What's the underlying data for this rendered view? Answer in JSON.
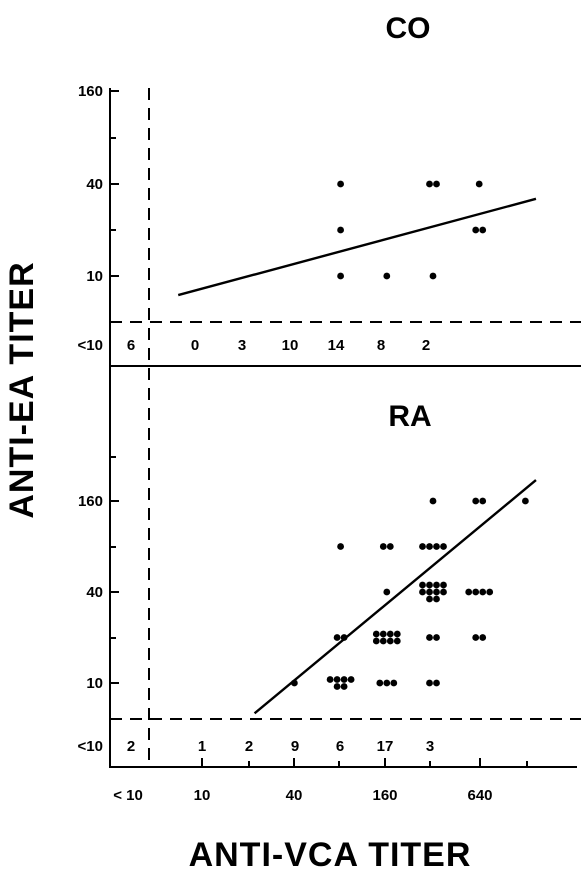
{
  "chart_data": [
    {
      "type": "scatter",
      "title": "CO",
      "xlabel": "ANTI-VCA TITER",
      "ylabel": "ANTI-EA TITER",
      "y_ticks": [
        "160",
        "40",
        "10",
        "<10"
      ],
      "points": [
        {
          "x": 80,
          "y": 40
        },
        {
          "x": 80,
          "y": 20
        },
        {
          "x": 80,
          "y": 10
        },
        {
          "x": 160,
          "y": 10
        },
        {
          "x": 320,
          "y": 40
        },
        {
          "x": 320,
          "y": 40
        },
        {
          "x": 320,
          "y": 10
        },
        {
          "x": 640,
          "y": 40
        },
        {
          "x": 640,
          "y": 20
        },
        {
          "x": 640,
          "y": 20
        }
      ],
      "regression": [
        {
          "x": 7,
          "y": 7.5
        },
        {
          "x": 1500,
          "y": 32
        }
      ],
      "below_threshold_counts": {
        "label": "<10",
        "x_values": [
          "<10",
          "5",
          "10",
          "20",
          "40",
          "80",
          "160",
          "320"
        ],
        "counts": [
          "6",
          "0",
          "3",
          "10",
          "14",
          "8",
          "2",
          ""
        ]
      }
    },
    {
      "type": "scatter",
      "title": "RA",
      "xlabel": "ANTI-VCA TITER",
      "ylabel": "ANTI-EA TITER",
      "x_ticks": [
        "< 10",
        "10",
        "40",
        "160",
        "640"
      ],
      "y_ticks": [
        "160",
        "40",
        "10",
        "<10"
      ],
      "points": [
        {
          "x": 40,
          "y": 10
        },
        {
          "x": 80,
          "y": 10
        },
        {
          "x": 80,
          "y": 10
        },
        {
          "x": 80,
          "y": 10
        },
        {
          "x": 80,
          "y": 10
        },
        {
          "x": 80,
          "y": 10
        },
        {
          "x": 80,
          "y": 10
        },
        {
          "x": 80,
          "y": 20
        },
        {
          "x": 80,
          "y": 20
        },
        {
          "x": 80,
          "y": 80
        },
        {
          "x": 160,
          "y": 10
        },
        {
          "x": 160,
          "y": 10
        },
        {
          "x": 160,
          "y": 10
        },
        {
          "x": 160,
          "y": 20
        },
        {
          "x": 160,
          "y": 20
        },
        {
          "x": 160,
          "y": 20
        },
        {
          "x": 160,
          "y": 20
        },
        {
          "x": 160,
          "y": 20
        },
        {
          "x": 160,
          "y": 20
        },
        {
          "x": 160,
          "y": 20
        },
        {
          "x": 160,
          "y": 20
        },
        {
          "x": 160,
          "y": 40
        },
        {
          "x": 160,
          "y": 80
        },
        {
          "x": 160,
          "y": 80
        },
        {
          "x": 320,
          "y": 10
        },
        {
          "x": 320,
          "y": 10
        },
        {
          "x": 320,
          "y": 20
        },
        {
          "x": 320,
          "y": 20
        },
        {
          "x": 320,
          "y": 40
        },
        {
          "x": 320,
          "y": 40
        },
        {
          "x": 320,
          "y": 40
        },
        {
          "x": 320,
          "y": 40
        },
        {
          "x": 320,
          "y": 40
        },
        {
          "x": 320,
          "y": 40
        },
        {
          "x": 320,
          "y": 40
        },
        {
          "x": 320,
          "y": 40
        },
        {
          "x": 320,
          "y": 40
        },
        {
          "x": 320,
          "y": 40
        },
        {
          "x": 320,
          "y": 80
        },
        {
          "x": 320,
          "y": 80
        },
        {
          "x": 320,
          "y": 80
        },
        {
          "x": 320,
          "y": 80
        },
        {
          "x": 320,
          "y": 160
        },
        {
          "x": 640,
          "y": 40
        },
        {
          "x": 640,
          "y": 40
        },
        {
          "x": 640,
          "y": 40
        },
        {
          "x": 640,
          "y": 40
        },
        {
          "x": 640,
          "y": 20
        },
        {
          "x": 640,
          "y": 20
        },
        {
          "x": 640,
          "y": 160
        },
        {
          "x": 640,
          "y": 160
        },
        {
          "x": 1280,
          "y": 160
        }
      ],
      "regression": [
        {
          "x": 22,
          "y": 6.3
        },
        {
          "x": 1500,
          "y": 220
        }
      ],
      "below_threshold_counts": {
        "label": "<10",
        "x_values": [
          "<10",
          "5",
          "10",
          "20",
          "40",
          "80",
          "160",
          "320"
        ],
        "counts": [
          "2",
          "",
          "1",
          "2",
          "9",
          "6",
          "17",
          "3"
        ]
      }
    }
  ]
}
